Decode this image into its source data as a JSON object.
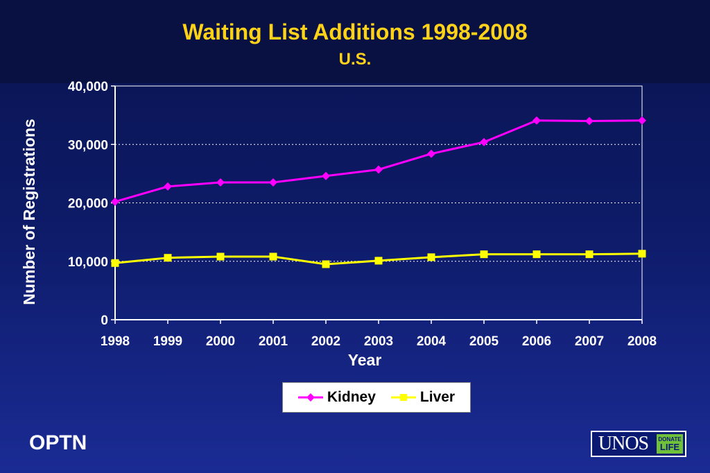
{
  "header": {
    "title": "Waiting List Additions 1998-2008",
    "subtitle": "U.S."
  },
  "colors": {
    "kidney": "#ff00ff",
    "liver": "#ffff00",
    "title": "#ffd21a",
    "axis_text": "#ffffff"
  },
  "chart_data": {
    "type": "line",
    "title": "Waiting List Additions 1998-2008",
    "subtitle": "U.S.",
    "xlabel": "Year",
    "ylabel": "Number of Registrations",
    "x": [
      "1998",
      "1999",
      "2000",
      "2001",
      "2002",
      "2003",
      "2004",
      "2005",
      "2006",
      "2007",
      "2008"
    ],
    "ylim": [
      0,
      40000
    ],
    "yticks": [
      0,
      10000,
      20000,
      30000,
      40000
    ],
    "ytick_labels": [
      "0",
      "10,000",
      "20,000",
      "30,000",
      "40,000"
    ],
    "grid": "horizontal dotted",
    "legend_position": "bottom-center",
    "series": [
      {
        "name": "Kidney",
        "marker": "diamond",
        "color": "#ff00ff",
        "values": [
          20200,
          22800,
          23500,
          23500,
          24600,
          25700,
          28400,
          30400,
          34100,
          34000,
          34100
        ]
      },
      {
        "name": "Liver",
        "marker": "square",
        "color": "#ffff00",
        "values": [
          9700,
          10600,
          10800,
          10800,
          9500,
          10100,
          10700,
          11200,
          11200,
          11200,
          11300
        ]
      }
    ]
  },
  "footer": {
    "left_label": "OPTN",
    "logo_text": "UNOS",
    "logo_badge_line1": "DONATE",
    "logo_badge_line2": "LIFE"
  }
}
